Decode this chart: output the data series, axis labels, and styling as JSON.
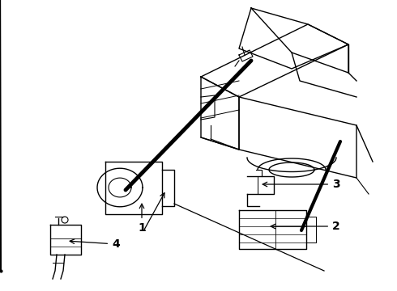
{
  "background_color": "#ffffff",
  "line_color": "#000000",
  "figure_width": 4.9,
  "figure_height": 3.6,
  "dpi": 100,
  "label_fontsize": 10
}
